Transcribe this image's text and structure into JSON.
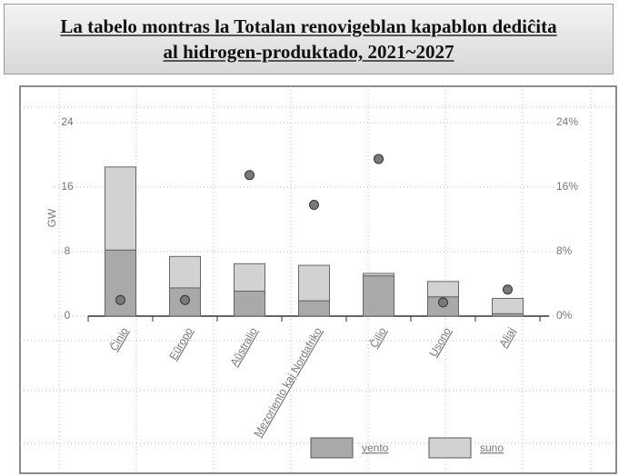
{
  "chart_data": {
    "type": "bar",
    "stacked": true,
    "title": "La tabelo montras la Totalan renovigeblan kapablon dediĉita al hidrogen-produktado, 2021~2027",
    "ylabel": "GW",
    "categories": [
      "Ĉinio",
      "Eŭropo",
      "Aŭstralio",
      "Mezoriento kaj Nordafriko",
      "Ĉilio",
      "Usono",
      "Aliaj"
    ],
    "series": [
      {
        "name": "vento",
        "color": "#a9a9a9",
        "values": [
          8.2,
          3.5,
          3.1,
          1.9,
          5.0,
          2.4,
          0.3
        ]
      },
      {
        "name": "suno",
        "color": "#d2d2d2",
        "values": [
          10.3,
          3.9,
          3.4,
          4.4,
          0.3,
          1.9,
          1.9
        ]
      },
      {
        "type": "scatter",
        "axis": "y2",
        "color": "#7a7a7a",
        "values": [
          2,
          2,
          17.5,
          13.8,
          19.5,
          1.7,
          3.3
        ]
      }
    ],
    "ylim": [
      0,
      24
    ],
    "yticks": [
      0,
      8,
      16,
      24
    ],
    "y2lim": [
      0,
      24
    ],
    "y2ticks": [
      {
        "value": 0,
        "label": "0%"
      },
      {
        "value": 8,
        "label": "8%"
      },
      {
        "value": 16,
        "label": "16%"
      },
      {
        "value": 24,
        "label": "24%"
      }
    ],
    "grid": true,
    "legend": "bottom"
  }
}
